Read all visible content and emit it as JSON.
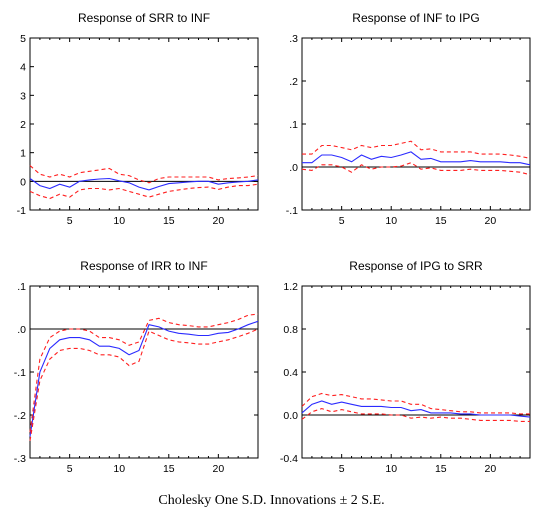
{
  "caption": "Cholesky One S.D. Innovations ± 2 S.E.",
  "colors": {
    "response": "#2b2bff",
    "band": "#ff2020",
    "zero": "#000000",
    "frame": "#000000"
  },
  "chart_data": [
    {
      "type": "line",
      "title": "Response of SRR to INF",
      "xlim": [
        1,
        24
      ],
      "ylim": [
        -1,
        5
      ],
      "yticks": [
        -1,
        0,
        1,
        2,
        3,
        4,
        5
      ],
      "yticklabels": [
        "-1",
        "0",
        "1",
        "2",
        "3",
        "4",
        "5"
      ],
      "xticks": [
        5,
        10,
        15,
        20
      ],
      "x": [
        1,
        2,
        3,
        4,
        5,
        6,
        7,
        8,
        9,
        10,
        11,
        12,
        13,
        14,
        15,
        16,
        17,
        18,
        19,
        20,
        21,
        22,
        23,
        24
      ],
      "series": [
        {
          "role": "response",
          "values": [
            0.1,
            -0.15,
            -0.25,
            -0.1,
            -0.2,
            0.0,
            0.05,
            0.08,
            0.1,
            0.02,
            -0.05,
            -0.2,
            -0.3,
            -0.18,
            -0.08,
            -0.05,
            -0.02,
            0.0,
            0.0,
            -0.1,
            -0.05,
            -0.02,
            0.0,
            0.05
          ]
        },
        {
          "role": "upper",
          "values": [
            0.55,
            0.25,
            0.15,
            0.25,
            0.15,
            0.3,
            0.35,
            0.4,
            0.45,
            0.25,
            0.2,
            0.05,
            -0.05,
            0.1,
            0.15,
            0.15,
            0.15,
            0.15,
            0.15,
            0.05,
            0.1,
            0.12,
            0.15,
            0.2
          ]
        },
        {
          "role": "lower",
          "values": [
            -0.35,
            -0.5,
            -0.6,
            -0.45,
            -0.55,
            -0.3,
            -0.25,
            -0.25,
            -0.3,
            -0.25,
            -0.35,
            -0.45,
            -0.55,
            -0.45,
            -0.35,
            -0.3,
            -0.25,
            -0.22,
            -0.2,
            -0.28,
            -0.2,
            -0.15,
            -0.15,
            -0.1
          ]
        }
      ]
    },
    {
      "type": "line",
      "title": "Response of INF to IPG",
      "xlim": [
        1,
        24
      ],
      "ylim": [
        -0.1,
        0.3
      ],
      "yticks": [
        -0.1,
        0.0,
        0.1,
        0.2,
        0.3
      ],
      "yticklabels": [
        "-.1",
        ".0",
        ".1",
        ".2",
        ".3"
      ],
      "xticks": [
        5,
        10,
        15,
        20
      ],
      "x": [
        1,
        2,
        3,
        4,
        5,
        6,
        7,
        8,
        9,
        10,
        11,
        12,
        13,
        14,
        15,
        16,
        17,
        18,
        19,
        20,
        21,
        22,
        23,
        24
      ],
      "series": [
        {
          "role": "response",
          "values": [
            0.01,
            0.01,
            0.028,
            0.028,
            0.022,
            0.012,
            0.028,
            0.018,
            0.025,
            0.022,
            0.028,
            0.035,
            0.018,
            0.02,
            0.012,
            0.012,
            0.012,
            0.015,
            0.012,
            0.012,
            0.012,
            0.01,
            0.01,
            0.005
          ]
        },
        {
          "role": "upper",
          "values": [
            0.03,
            0.03,
            0.05,
            0.05,
            0.045,
            0.04,
            0.05,
            0.045,
            0.05,
            0.05,
            0.055,
            0.06,
            0.04,
            0.042,
            0.035,
            0.035,
            0.035,
            0.035,
            0.03,
            0.03,
            0.03,
            0.028,
            0.025,
            0.02
          ]
        },
        {
          "role": "lower",
          "values": [
            -0.005,
            -0.008,
            0.005,
            0.005,
            0.0,
            -0.012,
            0.005,
            -0.005,
            0.0,
            0.0,
            0.002,
            0.01,
            -0.005,
            -0.002,
            -0.008,
            -0.008,
            -0.008,
            -0.005,
            -0.008,
            -0.008,
            -0.008,
            -0.01,
            -0.012,
            -0.018
          ]
        }
      ]
    },
    {
      "type": "line",
      "title": "Response of IRR to INF",
      "xlim": [
        1,
        24
      ],
      "ylim": [
        -0.3,
        0.1
      ],
      "yticks": [
        -0.3,
        -0.2,
        -0.1,
        0.0,
        0.1
      ],
      "yticklabels": [
        "-.3",
        "-.2",
        "-.1",
        ".0",
        ".1"
      ],
      "xticks": [
        5,
        10,
        15,
        20
      ],
      "x": [
        1,
        2,
        3,
        4,
        5,
        6,
        7,
        8,
        9,
        10,
        11,
        12,
        13,
        14,
        15,
        16,
        17,
        18,
        19,
        20,
        21,
        22,
        23,
        24
      ],
      "series": [
        {
          "role": "response",
          "values": [
            -0.25,
            -0.1,
            -0.045,
            -0.025,
            -0.02,
            -0.02,
            -0.025,
            -0.04,
            -0.04,
            -0.045,
            -0.06,
            -0.05,
            0.01,
            0.005,
            -0.005,
            -0.01,
            -0.012,
            -0.015,
            -0.015,
            -0.01,
            -0.008,
            0.0,
            0.01,
            0.018
          ]
        },
        {
          "role": "upper",
          "values": [
            -0.24,
            -0.07,
            -0.02,
            -0.005,
            0.0,
            0.0,
            -0.005,
            -0.02,
            -0.02,
            -0.025,
            -0.038,
            -0.03,
            0.02,
            0.025,
            0.015,
            0.01,
            0.008,
            0.005,
            0.005,
            0.01,
            0.015,
            0.022,
            0.032,
            0.035
          ]
        },
        {
          "role": "lower",
          "values": [
            -0.26,
            -0.12,
            -0.07,
            -0.05,
            -0.045,
            -0.045,
            -0.05,
            -0.06,
            -0.06,
            -0.065,
            -0.085,
            -0.075,
            -0.005,
            -0.015,
            -0.025,
            -0.03,
            -0.032,
            -0.035,
            -0.035,
            -0.03,
            -0.025,
            -0.018,
            -0.01,
            0.0
          ]
        }
      ]
    },
    {
      "type": "line",
      "title": "Response of IPG to SRR",
      "xlim": [
        1,
        24
      ],
      "ylim": [
        -0.4,
        1.2
      ],
      "yticks": [
        -0.4,
        0.0,
        0.4,
        0.8,
        1.2
      ],
      "yticklabels": [
        "-0.4",
        "0.0",
        "0.4",
        "0.8",
        "1.2"
      ],
      "xticks": [
        5,
        10,
        15,
        20
      ],
      "x": [
        1,
        2,
        3,
        4,
        5,
        6,
        7,
        8,
        9,
        10,
        11,
        12,
        13,
        14,
        15,
        16,
        17,
        18,
        19,
        20,
        21,
        22,
        23,
        24
      ],
      "series": [
        {
          "role": "response",
          "values": [
            0.02,
            0.1,
            0.13,
            0.1,
            0.12,
            0.1,
            0.08,
            0.08,
            0.08,
            0.07,
            0.07,
            0.04,
            0.05,
            0.02,
            0.02,
            0.02,
            0.01,
            0.01,
            0.0,
            0.0,
            0.0,
            0.0,
            -0.01,
            -0.02
          ]
        },
        {
          "role": "upper",
          "values": [
            0.08,
            0.17,
            0.2,
            0.18,
            0.19,
            0.17,
            0.15,
            0.15,
            0.14,
            0.13,
            0.13,
            0.1,
            0.1,
            0.06,
            0.05,
            0.04,
            0.03,
            0.03,
            0.02,
            0.02,
            0.02,
            0.02,
            0.01,
            0.01
          ]
        },
        {
          "role": "lower",
          "values": [
            -0.04,
            0.03,
            0.06,
            0.03,
            0.05,
            0.03,
            0.01,
            0.01,
            0.01,
            0.0,
            0.0,
            -0.03,
            -0.02,
            -0.03,
            -0.02,
            -0.03,
            -0.03,
            -0.04,
            -0.05,
            -0.05,
            -0.05,
            -0.05,
            -0.06,
            -0.06
          ]
        }
      ]
    }
  ]
}
